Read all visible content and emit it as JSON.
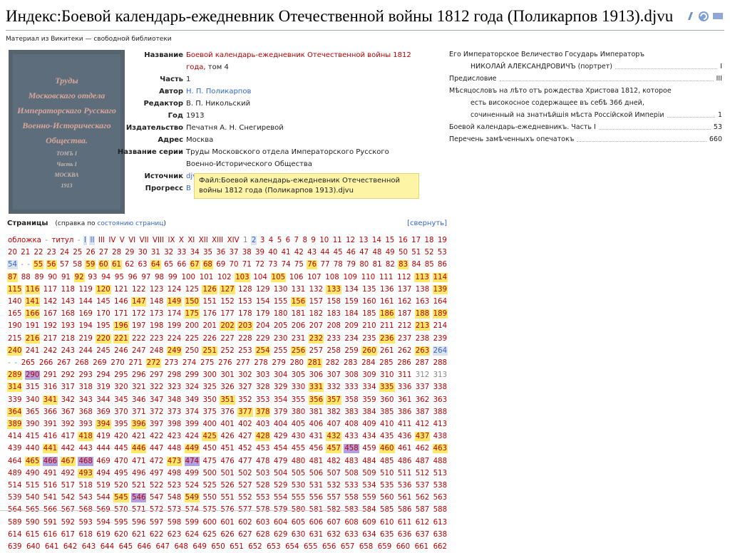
{
  "header": {
    "title": "Индекс:Боевой календарь-ежедневник Отечественной войны 1812 года (Поликарпов 1913).djvu",
    "subtitle": "Материал из Викитеки — свободной библиотеки"
  },
  "cover": [
    "Труды",
    "Московскаго отдела",
    "Императорскаго Русскаго",
    "Военно-Историческаго",
    "Общества.",
    "ТОМЪ I",
    "Часть I",
    "МОСКВА",
    "1913"
  ],
  "meta": [
    {
      "label": "Название",
      "value": "Боевой календарь-ежедневник Отечественной войны 1812 года",
      "suffix": ", том 4",
      "style": "red-link"
    },
    {
      "label": "Часть",
      "value": "1"
    },
    {
      "label": "Автор",
      "value": "Н. П. Поликарпов",
      "style": "link"
    },
    {
      "label": "Редактор",
      "value": "В. П. Никольский"
    },
    {
      "label": "Год",
      "value": "1913"
    },
    {
      "label": "Издательство",
      "value": "Печатня А. Н. Снегиревой"
    },
    {
      "label": "Адрес",
      "value": "Москва"
    },
    {
      "label": "Название серии",
      "value": "Труды Московского отдела Императорского Русского Военно-Исторического Общества"
    },
    {
      "label": "Источник",
      "value": "djvu",
      "style": "link"
    },
    {
      "label": "Прогресс",
      "value": "В",
      "style": "link"
    }
  ],
  "tooltip": "Файл:Боевой календарь-ежедневник Отечественной войны 1812 года (Поликарпов 1913).djvu",
  "toc": [
    {
      "lines": [
        "Его Императорское Величество Государь Императоръ",
        "НИКОЛАЙ АЛЕКСАНДРОВИЧЪ (портрет)"
      ],
      "page": "I"
    },
    {
      "lines": [
        "Предисловие"
      ],
      "page": "III"
    },
    {
      "lines": [
        "Мѣсяцословъ на лѣто отъ рождества Христова 1812, которое",
        "есть високосное содержащее въ себѣ 366 дней,",
        "сочиненный на знатнѣйшія мѣста Россійской Имперіи"
      ],
      "page": "1"
    },
    {
      "lines": [
        "Боевой календарь-ежедневникъ. Часть I"
      ],
      "page": "53"
    },
    {
      "lines": [
        "Перечень замѣченныхъ опечатокъ"
      ],
      "page": "660"
    }
  ],
  "pages_section": {
    "title": "Страницы",
    "help_prefix": "(справка по ",
    "help_link": "состоянию страниц",
    "help_suffix": ")",
    "toggle": "[свернуть]"
  },
  "pages": [
    "обложка",
    {
      "label": "-",
      "status": "g"
    },
    "титул",
    {
      "label": "-",
      "status": "g"
    },
    {
      "label": "I",
      "status": "b"
    },
    {
      "label": "II",
      "status": "b"
    },
    "III",
    "IV",
    "V",
    "VI",
    "VII",
    "VIII",
    "IX",
    "X",
    "XI",
    "XII",
    "XIII",
    "XIV",
    {
      "label": 1,
      "status": "g"
    },
    {
      "label": 2,
      "status": "b"
    },
    3,
    4,
    5,
    6,
    7,
    8,
    9,
    10,
    11,
    12,
    13,
    14,
    15,
    16,
    17,
    18,
    19,
    20,
    21,
    22,
    23,
    24,
    25,
    26,
    27,
    28,
    29,
    30,
    31,
    32,
    33,
    34,
    35,
    36,
    37,
    38,
    39,
    40,
    41,
    42,
    43,
    44,
    45,
    46,
    47,
    48,
    49,
    50,
    51,
    52,
    53,
    {
      "label": 54,
      "status": "b"
    },
    {
      "label": "-",
      "status": "g"
    },
    {
      "label": "-",
      "status": "g"
    },
    {
      "label": 55,
      "status": "y"
    },
    {
      "label": 56,
      "status": "y"
    },
    57,
    58,
    {
      "label": 59,
      "status": "y"
    },
    {
      "label": 60,
      "status": "y"
    },
    {
      "label": 61,
      "status": "y"
    },
    62,
    63,
    {
      "label": 64,
      "status": "y"
    },
    65,
    66,
    {
      "label": 67,
      "status": "y"
    },
    {
      "label": 68,
      "status": "y"
    },
    69,
    70,
    71,
    72,
    73,
    74,
    75,
    {
      "label": 76,
      "status": "y"
    },
    77,
    78,
    79,
    80,
    81,
    82,
    {
      "label": 83,
      "status": "y"
    },
    84,
    85,
    86,
    {
      "label": 87,
      "status": "y"
    },
    88,
    89,
    90,
    91,
    {
      "label": 92,
      "status": "y"
    },
    93,
    94,
    95,
    96,
    97,
    98,
    99,
    100,
    101,
    102,
    {
      "label": 103,
      "status": "y"
    },
    104,
    {
      "label": 105,
      "status": "y"
    },
    106,
    107,
    108,
    109,
    110,
    111,
    112,
    {
      "label": 113,
      "status": "y"
    },
    {
      "label": 114,
      "status": "y"
    },
    {
      "label": 115,
      "status": "y"
    },
    {
      "label": 116,
      "status": "y"
    },
    117,
    118,
    119,
    {
      "label": 120,
      "status": "y"
    },
    121,
    122,
    123,
    124,
    125,
    {
      "label": 126,
      "status": "y"
    },
    {
      "label": 127,
      "status": "y"
    },
    128,
    129,
    130,
    131,
    132,
    {
      "label": 133,
      "status": "y"
    },
    134,
    135,
    136,
    137,
    138,
    {
      "label": 139,
      "status": "y"
    },
    140,
    {
      "label": 141,
      "status": "y"
    },
    142,
    143,
    144,
    145,
    146,
    {
      "label": 147,
      "status": "y"
    },
    148,
    {
      "label": 149,
      "status": "y"
    },
    {
      "label": 150,
      "status": "y"
    },
    151,
    152,
    153,
    154,
    155,
    {
      "label": 156,
      "status": "y"
    },
    157,
    158,
    159,
    160,
    161,
    162,
    163,
    164,
    165,
    {
      "label": 166,
      "status": "y"
    },
    167,
    168,
    169,
    170,
    171,
    172,
    173,
    174,
    {
      "label": 175,
      "status": "y"
    },
    176,
    177,
    178,
    179,
    180,
    181,
    182,
    183,
    184,
    185,
    {
      "label": 186,
      "status": "y"
    },
    187,
    {
      "label": 188,
      "status": "y"
    },
    {
      "label": 189,
      "status": "y"
    },
    190,
    191,
    192,
    193,
    194,
    195,
    {
      "label": 196,
      "status": "y"
    },
    197,
    198,
    199,
    200,
    201,
    {
      "label": 202,
      "status": "y"
    },
    {
      "label": 203,
      "status": "y"
    },
    204,
    205,
    206,
    207,
    208,
    209,
    210,
    211,
    212,
    {
      "label": 213,
      "status": "y"
    },
    214,
    215,
    {
      "label": 216,
      "status": "y"
    },
    217,
    218,
    219,
    {
      "label": 220,
      "status": "y"
    },
    {
      "label": 221,
      "status": "y"
    },
    222,
    223,
    224,
    225,
    226,
    227,
    228,
    229,
    230,
    231,
    {
      "label": 232,
      "status": "y"
    },
    233,
    234,
    235,
    {
      "label": 236,
      "status": "y"
    },
    237,
    238,
    239,
    {
      "label": 240,
      "status": "y"
    },
    241,
    242,
    243,
    244,
    245,
    246,
    247,
    248,
    {
      "label": 249,
      "status": "y"
    },
    250,
    {
      "label": 251,
      "status": "y"
    },
    252,
    253,
    {
      "label": 254,
      "status": "y"
    },
    255,
    {
      "label": 256,
      "status": "y"
    },
    257,
    258,
    259,
    {
      "label": 260,
      "status": "y"
    },
    261,
    262,
    {
      "label": 263,
      "status": "y"
    },
    {
      "label": 264,
      "status": "b"
    },
    {
      "label": "-",
      "status": "g"
    },
    {
      "label": "-",
      "status": "g"
    },
    265,
    266,
    267,
    268,
    269,
    270,
    271,
    {
      "label": 272,
      "status": "y"
    },
    273,
    274,
    275,
    276,
    277,
    278,
    279,
    280,
    {
      "label": 281,
      "status": "y"
    },
    282,
    283,
    284,
    285,
    286,
    287,
    288,
    {
      "label": 289,
      "status": "y"
    },
    {
      "label": 290,
      "status": "p"
    },
    291,
    292,
    293,
    294,
    295,
    296,
    297,
    298,
    299,
    300,
    301,
    302,
    303,
    304,
    305,
    306,
    307,
    308,
    309,
    310,
    311,
    {
      "label": 312,
      "status": "g"
    },
    {
      "label": 313,
      "status": "g"
    },
    {
      "label": 314,
      "status": "y"
    },
    315,
    316,
    317,
    318,
    319,
    320,
    321,
    322,
    323,
    324,
    325,
    326,
    327,
    328,
    329,
    330,
    {
      "label": 331,
      "status": "y"
    },
    332,
    333,
    334,
    {
      "label": 335,
      "status": "y"
    },
    336,
    337,
    338,
    339,
    340,
    {
      "label": 341,
      "status": "y"
    },
    342,
    343,
    344,
    345,
    346,
    347,
    348,
    349,
    350,
    {
      "label": 351,
      "status": "y"
    },
    352,
    353,
    354,
    355,
    {
      "label": 356,
      "status": "y"
    },
    {
      "label": 357,
      "status": "y"
    },
    358,
    359,
    360,
    361,
    362,
    363,
    {
      "label": 364,
      "status": "y"
    },
    365,
    366,
    367,
    368,
    369,
    370,
    371,
    372,
    373,
    374,
    375,
    376,
    {
      "label": 377,
      "status": "y"
    },
    {
      "label": 378,
      "status": "y"
    },
    379,
    380,
    381,
    382,
    383,
    384,
    385,
    386,
    387,
    388,
    {
      "label": 389,
      "status": "y"
    },
    390,
    391,
    392,
    393,
    {
      "label": 394,
      "status": "y"
    },
    395,
    {
      "label": 396,
      "status": "y"
    },
    397,
    398,
    399,
    400,
    401,
    402,
    403,
    404,
    405,
    406,
    407,
    408,
    409,
    410,
    411,
    412,
    413,
    414,
    415,
    416,
    417,
    {
      "label": 418,
      "status": "y"
    },
    419,
    420,
    421,
    422,
    423,
    424,
    {
      "label": 425,
      "status": "y"
    },
    426,
    427,
    {
      "label": 428,
      "status": "y"
    },
    429,
    430,
    431,
    {
      "label": 432,
      "status": "y"
    },
    433,
    434,
    435,
    436,
    {
      "label": 437,
      "status": "y"
    },
    438,
    439,
    440,
    {
      "label": 441,
      "status": "y"
    },
    442,
    443,
    444,
    445,
    {
      "label": 446,
      "status": "y"
    },
    447,
    448,
    {
      "label": 449,
      "status": "y"
    },
    450,
    451,
    452,
    453,
    454,
    455,
    456,
    {
      "label": 457,
      "status": "y"
    },
    {
      "label": 458,
      "status": "p"
    },
    459,
    {
      "label": 460,
      "status": "y"
    },
    461,
    462,
    {
      "label": 463,
      "status": "y"
    },
    464,
    {
      "label": 465,
      "status": "y"
    },
    {
      "label": 466,
      "status": "p"
    },
    {
      "label": 467,
      "status": "y"
    },
    {
      "label": 468,
      "status": "p"
    },
    469,
    470,
    471,
    472,
    {
      "label": 473,
      "status": "y"
    },
    {
      "label": 474,
      "status": "p"
    },
    475,
    476,
    477,
    478,
    479,
    480,
    481,
    482,
    483,
    484,
    485,
    486,
    487,
    488,
    489,
    490,
    491,
    492,
    {
      "label": 493,
      "status": "y"
    },
    494,
    495,
    496,
    497,
    498,
    499,
    500,
    501,
    502,
    503,
    504,
    505,
    506,
    507,
    508,
    509,
    510,
    511,
    512,
    513,
    514,
    515,
    516,
    517,
    518,
    519,
    520,
    521,
    522,
    523,
    524,
    525,
    526,
    527,
    528,
    529,
    530,
    531,
    532,
    533,
    534,
    535,
    536,
    537,
    538,
    539,
    540,
    541,
    542,
    543,
    544,
    {
      "label": 545,
      "status": "y"
    },
    {
      "label": 546,
      "status": "p"
    },
    547,
    548,
    {
      "label": 549,
      "status": "y"
    },
    550,
    551,
    552,
    553,
    554,
    555,
    556,
    557,
    558,
    559,
    560,
    561,
    562,
    563,
    564,
    565,
    566,
    567,
    568,
    569,
    570,
    571,
    572,
    573,
    574,
    575,
    576,
    577,
    578,
    579,
    580,
    581,
    582,
    583,
    584,
    585,
    586,
    587,
    588,
    589,
    590,
    591,
    592,
    593,
    594,
    595,
    596,
    597,
    598,
    599,
    600,
    601,
    602,
    603,
    604,
    605,
    606,
    607,
    608,
    609,
    610,
    611,
    612,
    613,
    614,
    615,
    616,
    617,
    618,
    619,
    620,
    621,
    622,
    623,
    624,
    625,
    626,
    627,
    628,
    629,
    630,
    631,
    632,
    633,
    634,
    635,
    636,
    637,
    638,
    639,
    640,
    641,
    642,
    643,
    644,
    645,
    646,
    647,
    648,
    649,
    650,
    651,
    652,
    653,
    654,
    655,
    656,
    657,
    658,
    659,
    660,
    661,
    662
  ]
}
